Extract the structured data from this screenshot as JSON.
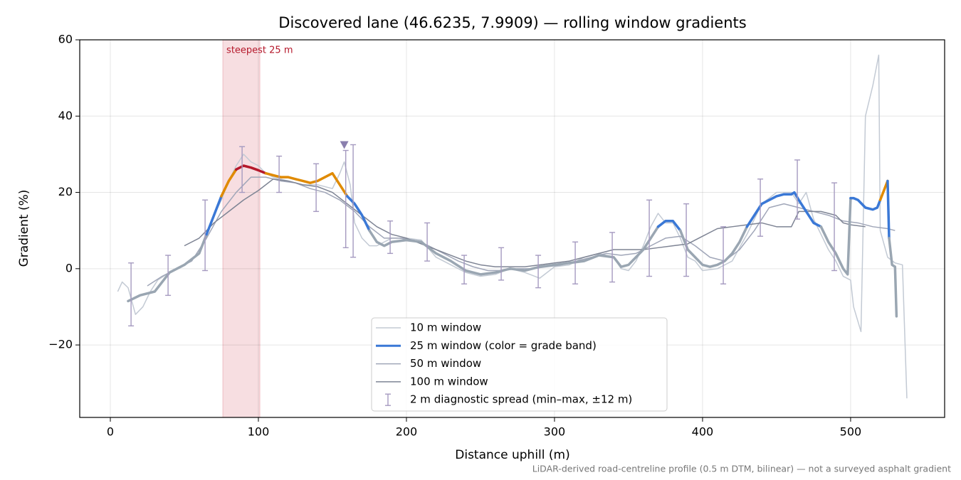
{
  "chart_data": {
    "type": "line",
    "title": "Discovered lane (46.6235, 7.9909) — rolling window gradients",
    "xlabel": "Distance uphill (m)",
    "ylabel": "Gradient (%)",
    "footnote": "LiDAR-derived road-centreline profile (0.5 m DTM, bilinear) — not a surveyed asphalt gradient",
    "xlim": [
      -20.67,
      563.5
    ],
    "ylim": [
      -39,
      60
    ],
    "xticks": [
      0,
      100,
      200,
      300,
      400,
      500
    ],
    "yticks": [
      {
        "value": -20,
        "label": "−20"
      },
      0,
      20,
      40,
      60
    ],
    "grid": true,
    "legend": "lower center",
    "highlight": {
      "label": "steepest 25 m",
      "x": [
        76,
        101
      ],
      "color": "#e8a0a8"
    },
    "marker": {
      "x": 158,
      "y": 32.5,
      "color": "#8a7fae"
    },
    "series": [
      {
        "name": "10 m window",
        "color": "#c3cad4",
        "width": 1.5,
        "x": [
          5,
          8,
          12,
          17,
          22,
          27,
          32,
          40,
          50,
          60,
          65,
          70,
          75,
          80,
          85,
          90,
          95,
          100,
          105,
          110,
          120,
          130,
          140,
          150,
          155,
          158,
          162,
          165,
          170,
          175,
          180,
          190,
          200,
          210,
          220,
          230,
          240,
          250,
          260,
          270,
          280,
          290,
          300,
          310,
          320,
          330,
          340,
          345,
          350,
          355,
          360,
          365,
          370,
          375,
          380,
          385,
          390,
          395,
          400,
          410,
          420,
          430,
          440,
          450,
          460,
          465,
          470,
          475,
          480,
          485,
          490,
          495,
          500,
          502,
          507,
          510,
          515,
          519,
          520,
          525,
          530,
          535,
          538
        ],
        "values": [
          -6,
          -3.5,
          -5,
          -12,
          -10,
          -6,
          -3,
          -1,
          1,
          4,
          9,
          14,
          18,
          23,
          27,
          30,
          28,
          27,
          25,
          24,
          23,
          22,
          22,
          21,
          25,
          28,
          22,
          12,
          8,
          6,
          6,
          8,
          8,
          7.5,
          3,
          1,
          -1,
          -2,
          -1.5,
          0,
          -1,
          -2.5,
          0.5,
          1,
          3,
          4,
          3,
          0,
          -0.5,
          2,
          6,
          11,
          14.5,
          12,
          12,
          8,
          3,
          2,
          -0.5,
          0,
          2,
          9,
          17,
          20,
          20,
          17,
          20,
          13,
          9,
          5,
          2,
          -2,
          -3,
          -10,
          -16.5,
          40,
          48,
          56,
          10,
          3,
          1.5,
          1,
          -34
        ]
      },
      {
        "name": "25 m window (color = grade band)",
        "color": "#9aa6b2",
        "width": 3.5,
        "legend_color": "#3a78d6",
        "grade_bands": [
          {
            "above": 25,
            "color": "#b5182b"
          },
          {
            "above": 20,
            "color": "#e08a00"
          },
          {
            "above": 10,
            "color": "#3a78d6"
          }
        ],
        "x": [
          12,
          20,
          30,
          40,
          50,
          60,
          65,
          70,
          75,
          80,
          85,
          90,
          95,
          100,
          105,
          110,
          115,
          120,
          125,
          130,
          135,
          140,
          145,
          150,
          155,
          160,
          165,
          170,
          175,
          180,
          185,
          190,
          200,
          210,
          220,
          230,
          240,
          250,
          260,
          270,
          280,
          290,
          300,
          310,
          320,
          330,
          340,
          345,
          350,
          355,
          360,
          365,
          370,
          375,
          380,
          385,
          390,
          395,
          400,
          405,
          410,
          415,
          420,
          425,
          430,
          435,
          440,
          445,
          450,
          455,
          460,
          462,
          465,
          470,
          475,
          480,
          485,
          490,
          495,
          498,
          500,
          502,
          505,
          510,
          515,
          518,
          520,
          525,
          526,
          528,
          530,
          531
        ],
        "values": [
          -8.5,
          -7,
          -6,
          -1,
          1,
          4,
          9,
          14,
          19,
          23,
          26,
          27,
          26.5,
          25.8,
          25,
          24.5,
          24,
          24,
          23.5,
          23,
          22.5,
          23,
          24,
          25,
          22,
          19,
          17,
          14,
          10,
          7,
          6,
          7,
          7.5,
          7,
          4,
          2,
          -0.5,
          -1.5,
          -1,
          0,
          -0.5,
          0.5,
          1,
          1.5,
          2,
          3.5,
          3,
          0.5,
          1,
          3,
          5,
          8,
          11,
          12.5,
          12.5,
          10,
          5,
          3,
          1,
          0.5,
          1,
          2,
          4,
          7,
          11,
          14,
          17,
          18,
          19,
          19.5,
          19.5,
          20,
          18,
          15,
          12,
          11,
          7,
          4,
          0,
          -1.5,
          18.5,
          18.5,
          18,
          16,
          15.5,
          16,
          18,
          23,
          8,
          1,
          0.5,
          -12.5
        ]
      },
      {
        "name": "50 m window",
        "color": "#a0a6b8",
        "width": 1.5,
        "x": [
          25,
          35,
          45,
          55,
          65,
          75,
          85,
          95,
          105,
          115,
          125,
          135,
          145,
          155,
          165,
          175,
          185,
          195,
          205,
          215,
          225,
          235,
          245,
          255,
          265,
          275,
          285,
          295,
          305,
          315,
          325,
          335,
          345,
          355,
          365,
          375,
          385,
          395,
          405,
          415,
          425,
          435,
          445,
          455,
          465,
          475,
          485,
          495,
          505,
          515,
          525,
          530
        ],
        "values": [
          -4.5,
          -2,
          0,
          2,
          8,
          15,
          20,
          24,
          24,
          23,
          22.5,
          21,
          20,
          18,
          15,
          11,
          8,
          8,
          7.5,
          6,
          4,
          2,
          0.5,
          -0.5,
          -0.5,
          0,
          0,
          0.5,
          1,
          2,
          3,
          4,
          3.5,
          4,
          6,
          8,
          8.5,
          6,
          3,
          2,
          5,
          10,
          16,
          17,
          16,
          15,
          14,
          12.5,
          12,
          11,
          10.5,
          10
        ]
      },
      {
        "name": "100 m window",
        "color": "#7e8494",
        "width": 1.5,
        "x": [
          50,
          60,
          70,
          80,
          90,
          100,
          110,
          120,
          130,
          140,
          150,
          160,
          170,
          180,
          190,
          200,
          210,
          220,
          230,
          240,
          250,
          260,
          270,
          280,
          290,
          300,
          310,
          320,
          330,
          340,
          350,
          360,
          370,
          380,
          390,
          400,
          410,
          420,
          430,
          440,
          450,
          460,
          465,
          470,
          480,
          490,
          495,
          500,
          510
        ],
        "values": [
          6,
          8,
          12,
          15,
          18,
          20.5,
          23.5,
          23,
          22,
          21.5,
          20,
          17,
          14,
          11,
          9,
          8,
          6.5,
          5,
          3.5,
          2,
          1,
          0.5,
          0.5,
          0.5,
          1,
          1.5,
          2,
          3,
          4,
          5,
          5,
          5,
          5.5,
          6,
          6.5,
          8.5,
          10.5,
          11,
          11.5,
          12,
          11,
          11,
          15,
          15,
          15,
          14,
          12,
          11.5,
          11
        ]
      }
    ],
    "errorbars": {
      "name": "2 m diagnostic spread (min–max, ±12 m)",
      "color": "#a59ac0",
      "x": [
        14,
        39,
        64,
        89,
        114,
        139,
        159,
        164,
        189,
        214,
        239,
        264,
        289,
        314,
        339,
        364,
        389,
        414,
        439,
        464,
        489
      ],
      "low": [
        -15,
        -7,
        -0.5,
        20,
        20,
        15,
        5.5,
        3,
        4,
        2,
        -4,
        -3,
        -5,
        -4,
        -3.5,
        -2,
        -2,
        -4,
        8.5,
        13,
        -0.5
      ],
      "high": [
        1.5,
        3.5,
        18,
        32,
        29.5,
        27.5,
        31,
        32.5,
        12.5,
        12,
        3.5,
        5.5,
        3.5,
        7,
        9.5,
        18,
        17,
        11,
        23.5,
        28.5,
        22.5
      ]
    }
  }
}
